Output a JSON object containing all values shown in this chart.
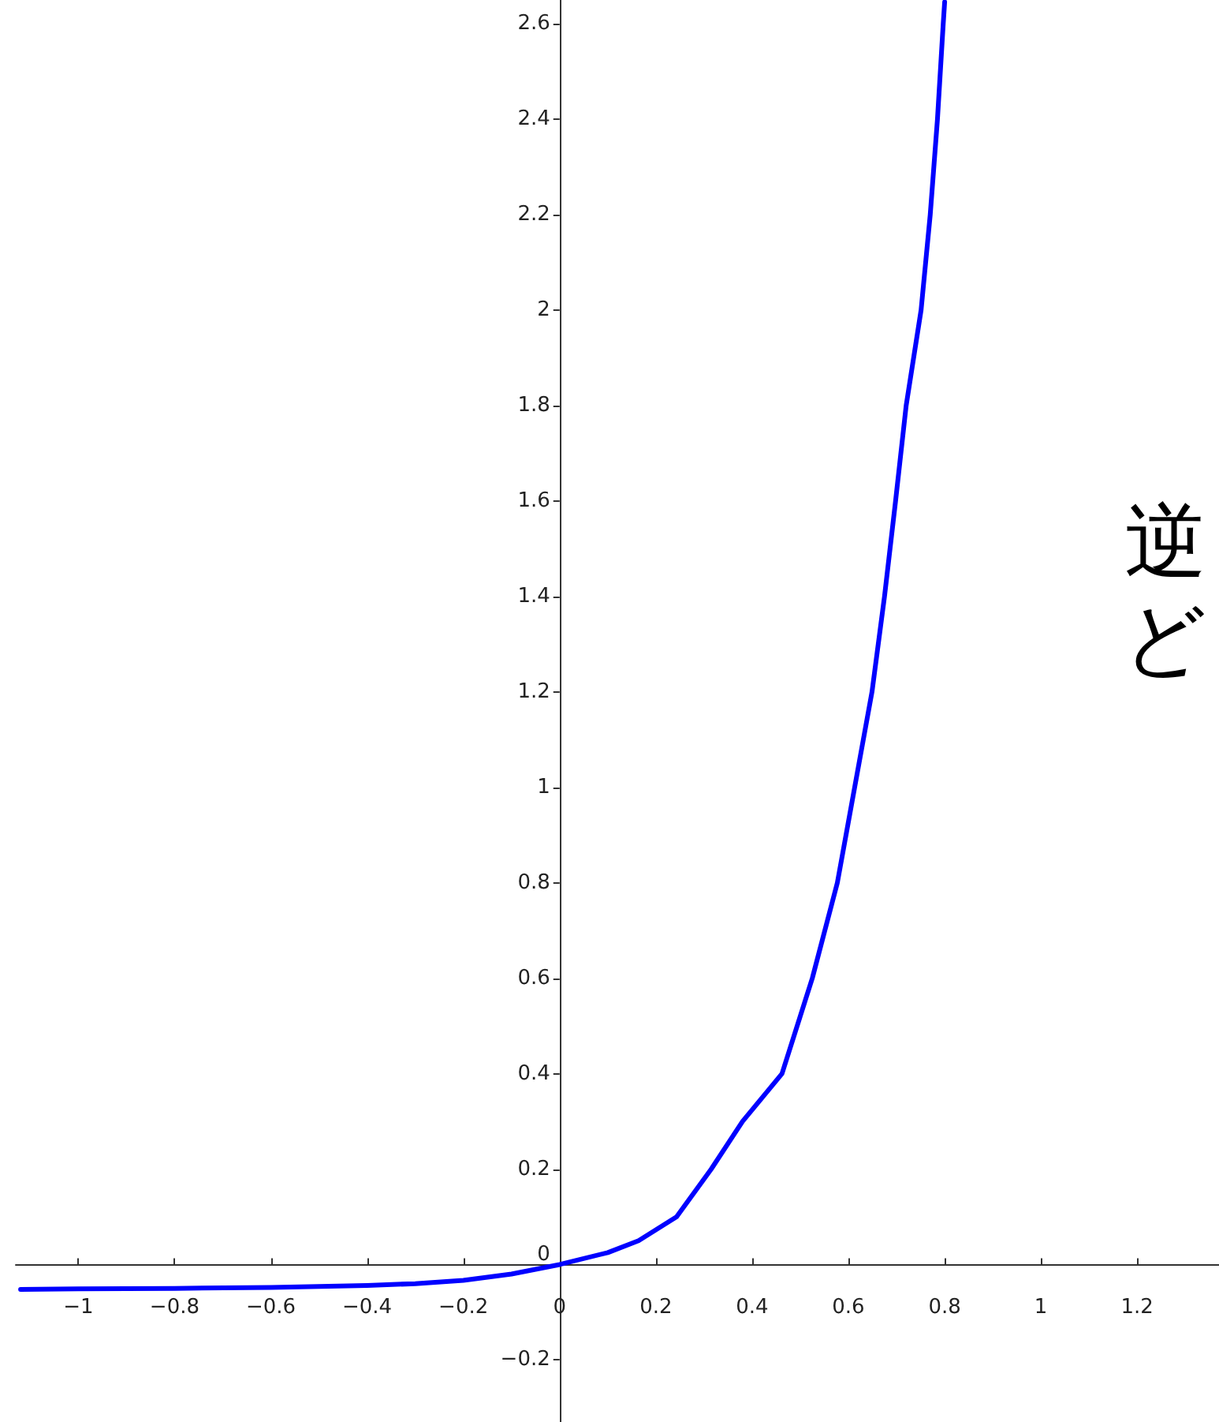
{
  "chart_data": {
    "type": "line",
    "x": [
      -1.12,
      -1,
      -0.8,
      -0.6,
      -0.4,
      -0.3,
      -0.2,
      -0.1,
      0,
      0.1,
      0.164,
      0.243,
      0.315,
      0.38,
      0.462,
      0.525,
      0.577,
      0.613,
      0.649,
      0.675,
      0.698,
      0.72,
      0.751,
      0.77,
      0.785,
      0.797,
      0.8
    ],
    "series": [
      {
        "color": "#0000ff",
        "values": [
          -0.052,
          -0.051,
          -0.05,
          -0.048,
          -0.044,
          -0.04,
          -0.033,
          -0.02,
          0,
          0.025,
          0.05,
          0.1,
          0.2,
          0.3,
          0.4,
          0.6,
          0.8,
          1.0,
          1.2,
          1.4,
          1.6,
          1.8,
          2.0,
          2.2,
          2.4,
          2.6,
          2.646
        ]
      }
    ],
    "xlim": [
      -1.13,
      1.37
    ],
    "ylim": [
      -0.33,
      2.65
    ],
    "xticks": [
      {
        "value": -1,
        "label": "−1"
      },
      {
        "value": -0.8,
        "label": "−0.8"
      },
      {
        "value": -0.6,
        "label": "−0.6"
      },
      {
        "value": -0.4,
        "label": "−0.4"
      },
      {
        "value": -0.2,
        "label": "−0.2"
      },
      0,
      0.2,
      0.4,
      0.6,
      0.8,
      1,
      1.2
    ],
    "yticks": [
      {
        "value": -0.2,
        "label": "−0.2"
      },
      0,
      0.2,
      0.4,
      0.6,
      0.8,
      1,
      1.2,
      1.4,
      1.6,
      1.8,
      2,
      2.2,
      2.4,
      2.6
    ],
    "annotations": [
      "逆",
      "ど"
    ],
    "grid": false,
    "marker": "none",
    "line_style": "solid"
  }
}
